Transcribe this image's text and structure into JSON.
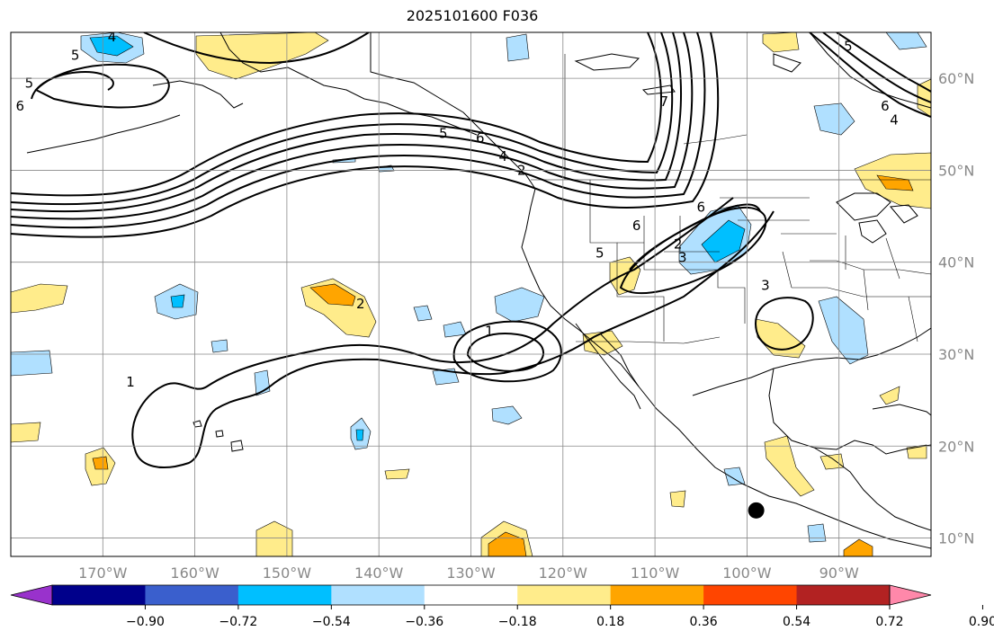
{
  "title": "2025101600 F036",
  "map": {
    "lat_range": [
      8,
      65
    ],
    "lon_range": [
      -180,
      -80
    ],
    "gridlines": true,
    "lat_labels": [
      "10°N",
      "20°N",
      "30°N",
      "40°N",
      "50°N",
      "60°N"
    ],
    "lat_values": [
      10,
      20,
      30,
      40,
      50,
      60
    ],
    "lon_labels": [
      "170°W",
      "160°W",
      "150°W",
      "140°W",
      "130°W",
      "120°W",
      "110°W",
      "100°W",
      "90°W"
    ],
    "lon_values": [
      -170,
      -160,
      -150,
      -140,
      -130,
      -120,
      -110,
      -100,
      -90
    ],
    "contour_labels": [
      {
        "text": "4",
        "lon": -169,
        "lat": 64
      },
      {
        "text": "5",
        "lon": -173,
        "lat": 62
      },
      {
        "text": "5",
        "lon": -178,
        "lat": 59
      },
      {
        "text": "6",
        "lon": -179,
        "lat": 56.5
      },
      {
        "text": "5",
        "lon": -133,
        "lat": 53.5
      },
      {
        "text": "6",
        "lon": -129,
        "lat": 53
      },
      {
        "text": "4",
        "lon": -126.5,
        "lat": 51
      },
      {
        "text": "2",
        "lon": -124.5,
        "lat": 49.5
      },
      {
        "text": "6",
        "lon": -112,
        "lat": 43.5
      },
      {
        "text": "6",
        "lon": -105,
        "lat": 45.5
      },
      {
        "text": "2",
        "lon": -107.5,
        "lat": 41.5
      },
      {
        "text": "3",
        "lon": -107,
        "lat": 40
      },
      {
        "text": "5",
        "lon": -116,
        "lat": 40.5
      },
      {
        "text": "1",
        "lon": -128,
        "lat": 32
      },
      {
        "text": "2",
        "lon": -142,
        "lat": 35
      },
      {
        "text": "1",
        "lon": -167,
        "lat": 26.5
      },
      {
        "text": "3",
        "lon": -98,
        "lat": 37
      },
      {
        "text": "5",
        "lon": -89,
        "lat": 63
      },
      {
        "text": "6",
        "lon": -85,
        "lat": 56.5
      },
      {
        "text": "4",
        "lon": -84,
        "lat": 55
      },
      {
        "text": "7",
        "lon": -109,
        "lat": 57
      }
    ],
    "marker": {
      "lon": -99,
      "lat": 13
    }
  },
  "colorbar": {
    "tick_labels": [
      "−0.90",
      "−0.72",
      "−0.54",
      "−0.36",
      "−0.18",
      "0.18",
      "0.36",
      "0.54",
      "0.72",
      "0.90"
    ],
    "colors": [
      "#9932cc",
      "#00008b",
      "#3a5fcd",
      "#00bfff",
      "#b0e0ff",
      "#ffffff",
      "#ffec8b",
      "#ffa500",
      "#ff4500",
      "#b22222",
      "#ff88aa"
    ]
  }
}
